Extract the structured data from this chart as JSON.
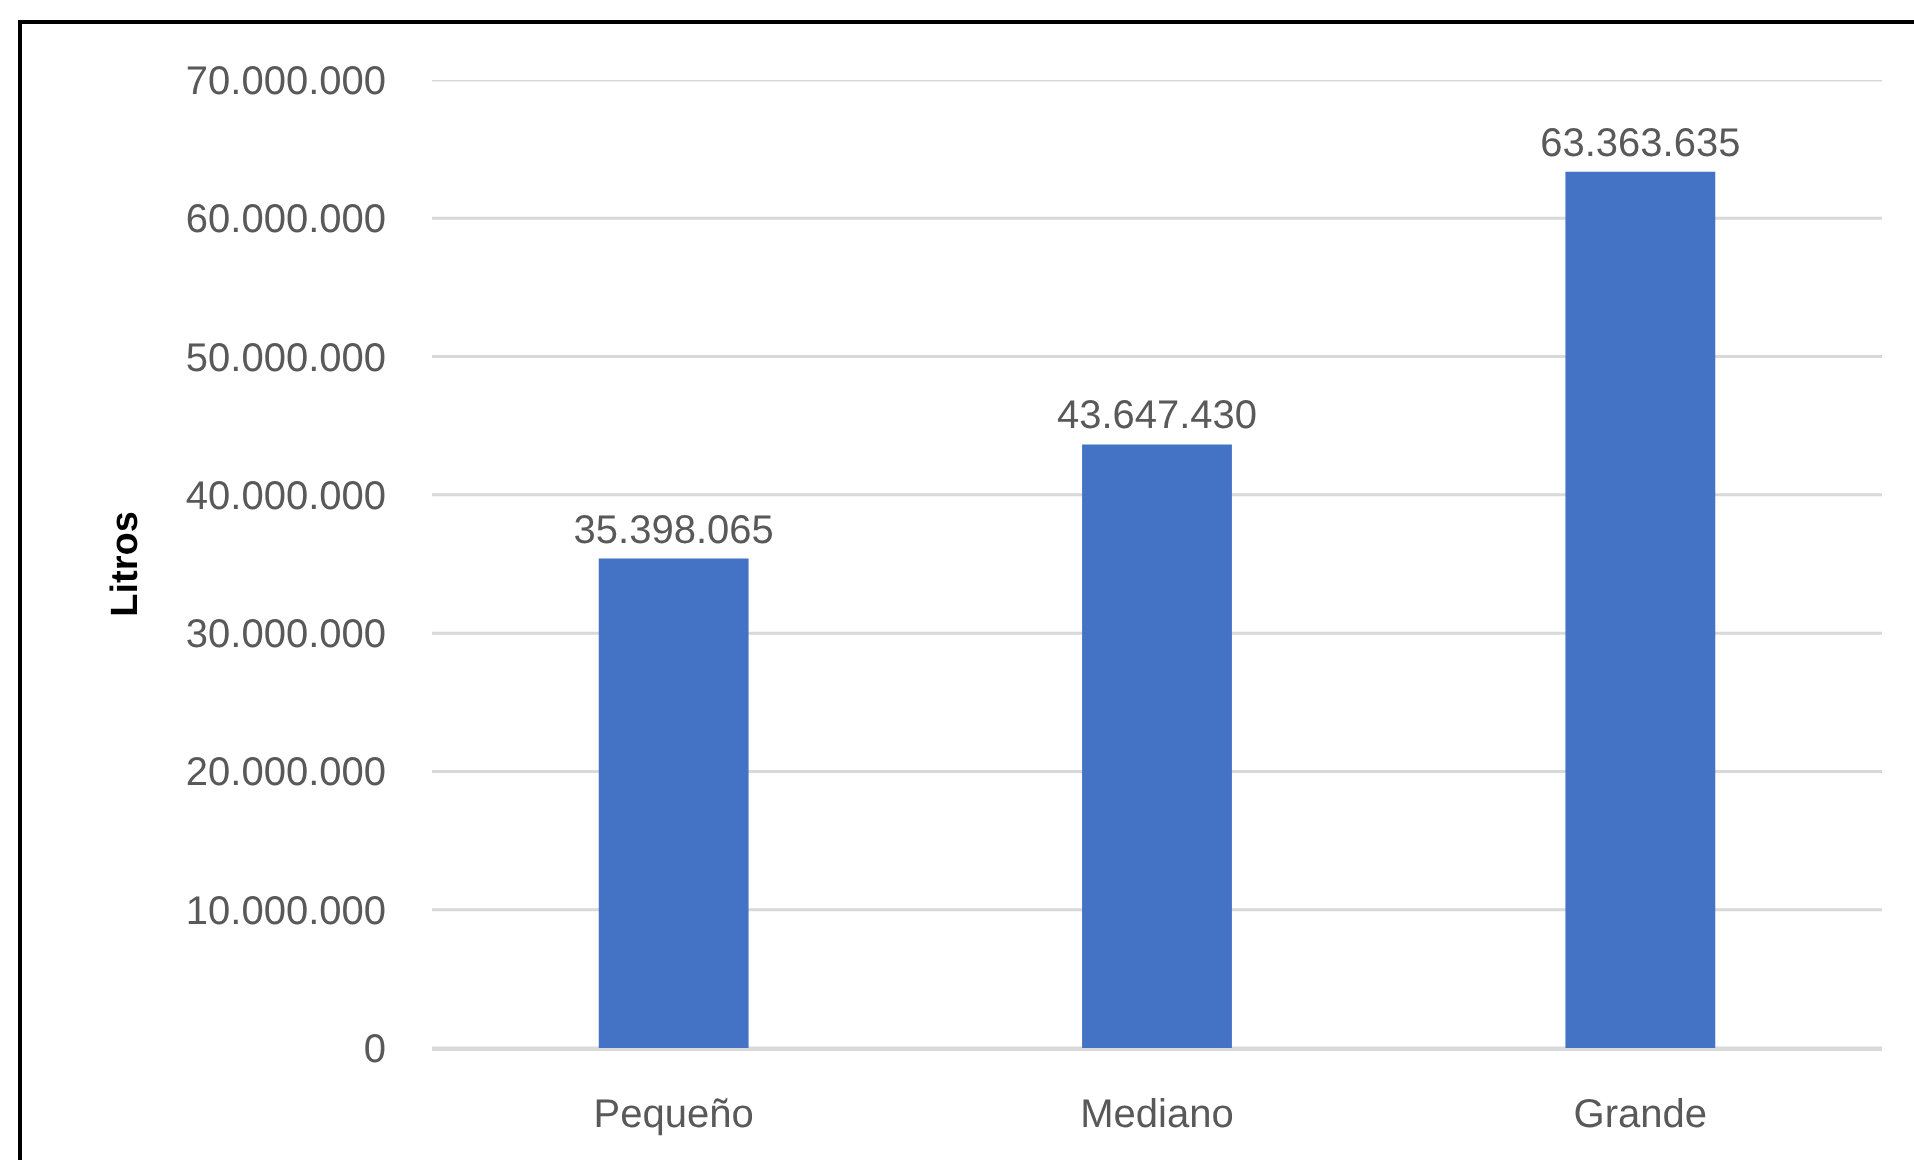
{
  "chart_data": {
    "type": "bar",
    "ylabel": "Litros",
    "categories": [
      "Pequeño",
      "Mediano",
      "Grande"
    ],
    "values": [
      35398065,
      43647430,
      63363635
    ],
    "value_labels": [
      "35.398.065",
      "43.647.430",
      "63.363.635"
    ],
    "color": "#4472c4",
    "ylim": [
      0,
      70000000
    ],
    "yticks": [
      0,
      {
        "value": 10000000,
        "label": "10.000.000"
      },
      {
        "value": 20000000,
        "label": "20.000.000"
      },
      {
        "value": 30000000,
        "label": "30.000.000"
      },
      {
        "value": 40000000,
        "label": "40.000.000"
      },
      {
        "value": 50000000,
        "label": "50.000.000"
      },
      {
        "value": 60000000,
        "label": "60.000.000"
      },
      {
        "value": 70000000,
        "label": "70.000.000"
      }
    ],
    "grid": "y"
  }
}
